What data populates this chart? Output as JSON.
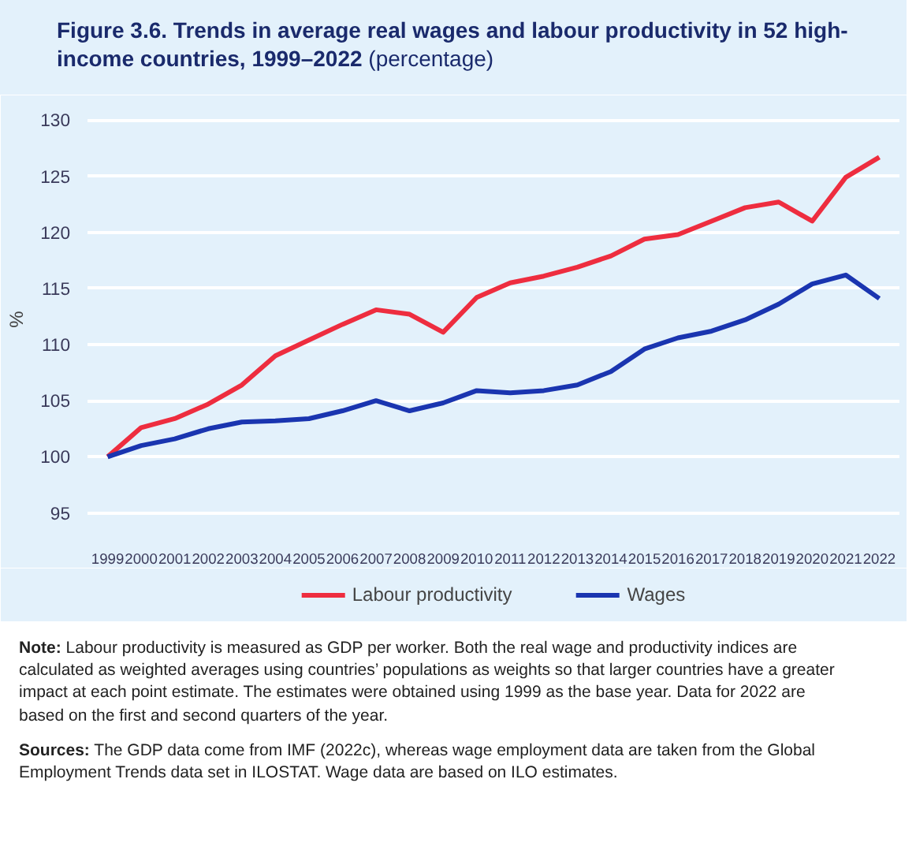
{
  "chart_data": {
    "type": "line",
    "title": "Figure 3.6. Trends in average real wages and labour productivity in 52 high-income countries, 1999–2022",
    "subtitle": "(percentage)",
    "ylabel": "%",
    "categories": [
      "1999",
      "2000",
      "2001",
      "2002",
      "2003",
      "2004",
      "2005",
      "2006",
      "2007",
      "2008",
      "2009",
      "2010",
      "2011",
      "2012",
      "2013",
      "2014",
      "2015",
      "2016",
      "2017",
      "2018",
      "2019",
      "2020",
      "2021",
      "2022"
    ],
    "series": [
      {
        "name": "Labour productivity",
        "color": "#ee2d3f",
        "values": [
          100,
          102.6,
          103.4,
          104.7,
          106.4,
          109,
          110.4,
          111.8,
          113.1,
          112.7,
          111.1,
          114.2,
          115.5,
          116.1,
          116.9,
          117.9,
          119.4,
          119.8,
          121.0,
          122.2,
          122.7,
          121.0,
          124.9,
          126.7
        ]
      },
      {
        "name": "Wages",
        "color": "#1a35b0",
        "values": [
          100,
          101,
          101.6,
          102.5,
          103.1,
          103.2,
          103.4,
          104.1,
          105,
          104.1,
          104.8,
          105.9,
          105.7,
          105.9,
          106.4,
          107.6,
          109.6,
          110.6,
          111.2,
          112.2,
          113.6,
          115.4,
          116.2,
          114.1
        ]
      }
    ],
    "ylim": [
      93,
      131.5
    ],
    "yticks": [
      95,
      100,
      105,
      110,
      115,
      120,
      125,
      130
    ],
    "grid": "y",
    "legend": "bottom",
    "annotations": [
      "Note: Labour productivity is measured as GDP per worker. Both the real wage and productivity indices are calculated as weighted averages using countries’ populations as weights so that larger countries have a greater impact at each point estimate. The estimates were obtained using 1999 as the base year. Data for 2022 are based on the first and second quarters of the year.",
      "Sources: The GDP data come from IMF (2022c), whereas wage employment data are taken from the Global Employment Trends data set in ILOSTAT. Wage data are based on ILO estimates."
    ]
  }
}
